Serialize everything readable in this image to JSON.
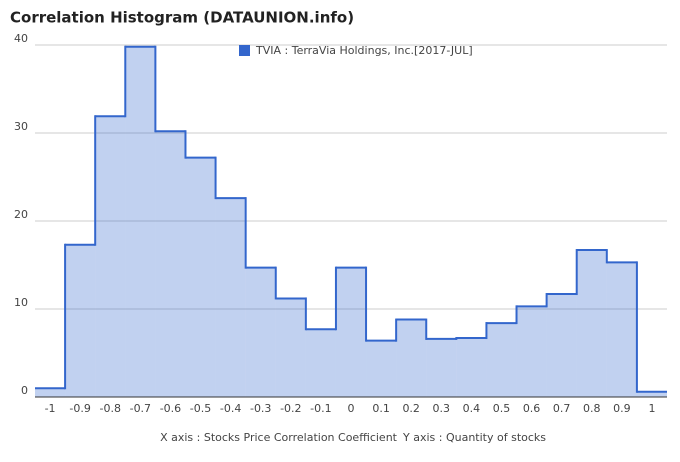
{
  "chart_data": {
    "type": "histogram",
    "title": "Correlation Histogram (DATAUNION.info)",
    "x_label": "X axis : Stocks Price Correlation Coefficient",
    "y_label": "Y axis : Quantity of stocks",
    "x": [
      -1,
      -0.9,
      -0.8,
      -0.7,
      -0.6,
      -0.5,
      -0.4,
      -0.3,
      -0.2,
      -0.1,
      0,
      0.1,
      0.2,
      0.3,
      0.4,
      0.5,
      0.6,
      0.7,
      0.8,
      0.9,
      1
    ],
    "series": [
      {
        "name": "TVIA : TerraVia Holdings, Inc.[2017-JUL]",
        "color": "#3366cc",
        "values": [
          1,
          17.3,
          31.9,
          39.8,
          30.2,
          27.2,
          22.6,
          14.7,
          11.2,
          7.7,
          14.7,
          6.4,
          8.8,
          6.6,
          6.7,
          8.4,
          10.3,
          11.7,
          16.7,
          15.3,
          0.6
        ]
      }
    ],
    "xlim": [
      -1.05,
      1.05
    ],
    "xticks": [
      -1,
      -0.9,
      -0.8,
      -0.7,
      -0.6,
      -0.5,
      -0.4,
      -0.3,
      -0.2,
      -0.1,
      0,
      0.1,
      0.2,
      0.3,
      0.4,
      0.5,
      0.6,
      0.7,
      0.8,
      0.9,
      1
    ],
    "ylim": [
      0,
      40
    ],
    "yticks": [
      0,
      10,
      20,
      30,
      40
    ],
    "grid": true
  }
}
